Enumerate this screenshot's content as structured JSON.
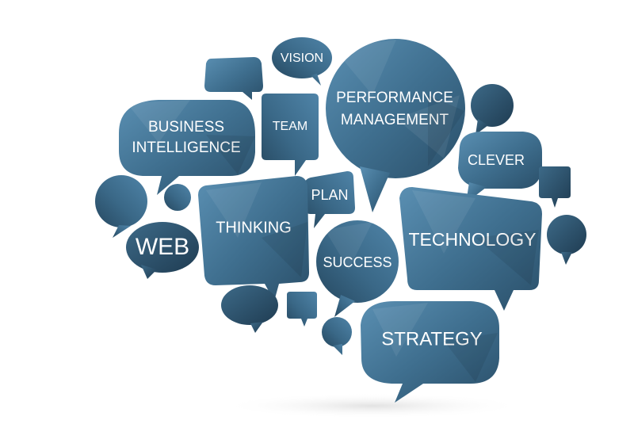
{
  "colors": {
    "bubble_dark": "#2d5570",
    "bubble_mid": "#3f6f8f",
    "bubble_light": "#5a8fb2",
    "text": "#ffffff",
    "shadow": "#ececec"
  },
  "bubbles": {
    "vision": "VISION",
    "performance_line1": "PERFORMANCE",
    "performance_line2": "MANAGEMENT",
    "business_line1": "BUSINESS",
    "business_line2": "INTELLIGENCE",
    "team": "TEAM",
    "clever": "CLEVER",
    "plan": "PLAN",
    "thinking": "THINKING",
    "web": "WEB",
    "success": "SUCCESS",
    "technology": "TECHNOLOGY",
    "strategy": "STRATEGY"
  }
}
